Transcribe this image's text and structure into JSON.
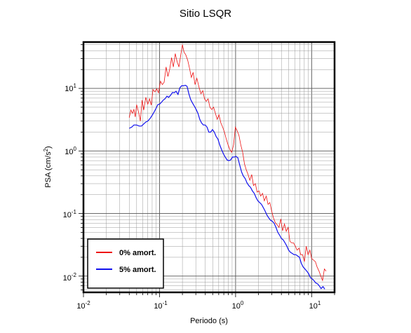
{
  "chart_data": {
    "type": "line",
    "title": "Sitio LSQR",
    "xlabel": "Periodo (s)",
    "ylabel_prefix": "PSA (cm/s",
    "ylabel_exp": "2",
    "ylabel_suffix": ")",
    "xscale": "log",
    "yscale": "log",
    "xlim": [
      0.01,
      20
    ],
    "ylim": [
      0.0055,
      55
    ],
    "grid": true,
    "legend_position": "bottom-left",
    "x_ticks": [
      {
        "base": "10",
        "exp": "-2",
        "value": 0.01
      },
      {
        "base": "10",
        "exp": "-1",
        "value": 0.1
      },
      {
        "base": "10",
        "exp": "0",
        "value": 1
      },
      {
        "base": "10",
        "exp": "1",
        "value": 10
      }
    ],
    "y_ticks": [
      {
        "base": "10",
        "exp": "-2",
        "value": 0.01
      },
      {
        "base": "10",
        "exp": "-1",
        "value": 0.1
      },
      {
        "base": "10",
        "exp": "0",
        "value": 1
      },
      {
        "base": "10",
        "exp": "1",
        "value": 10
      }
    ],
    "series": [
      {
        "name": "0% amort.",
        "color": "#ee1111",
        "points": [
          [
            0.04,
            3.4
          ],
          [
            0.042,
            4.5
          ],
          [
            0.044,
            4.0
          ],
          [
            0.046,
            4.6
          ],
          [
            0.048,
            3.5
          ],
          [
            0.05,
            5.5
          ],
          [
            0.053,
            4.2
          ],
          [
            0.056,
            3.0
          ],
          [
            0.059,
            6.5
          ],
          [
            0.062,
            4.5
          ],
          [
            0.066,
            7.2
          ],
          [
            0.07,
            5.6
          ],
          [
            0.074,
            6.8
          ],
          [
            0.078,
            5.4
          ],
          [
            0.082,
            9.6
          ],
          [
            0.087,
            8.8
          ],
          [
            0.092,
            9.8
          ],
          [
            0.097,
            8.5
          ],
          [
            0.103,
            13.0
          ],
          [
            0.109,
            11.5
          ],
          [
            0.115,
            12.5
          ],
          [
            0.122,
            22.0
          ],
          [
            0.129,
            15.5
          ],
          [
            0.136,
            20.0
          ],
          [
            0.144,
            31.0
          ],
          [
            0.152,
            22.0
          ],
          [
            0.161,
            36.0
          ],
          [
            0.17,
            27.0
          ],
          [
            0.18,
            22.0
          ],
          [
            0.19,
            34.0
          ],
          [
            0.2,
            50.0
          ],
          [
            0.21,
            38.0
          ],
          [
            0.222,
            34.0
          ],
          [
            0.235,
            28.0
          ],
          [
            0.248,
            21.0
          ],
          [
            0.262,
            15.0
          ],
          [
            0.277,
            18.0
          ],
          [
            0.293,
            11.5
          ],
          [
            0.31,
            14.5
          ],
          [
            0.33,
            10.5
          ],
          [
            0.35,
            8.2
          ],
          [
            0.37,
            9.2
          ],
          [
            0.39,
            6.8
          ],
          [
            0.412,
            6.2
          ],
          [
            0.435,
            6.8
          ],
          [
            0.46,
            5.0
          ],
          [
            0.486,
            4.6
          ],
          [
            0.513,
            5.0
          ],
          [
            0.542,
            4.0
          ],
          [
            0.573,
            3.2
          ],
          [
            0.605,
            3.8
          ],
          [
            0.64,
            2.8
          ],
          [
            0.676,
            2.4
          ],
          [
            0.714,
            2.0
          ],
          [
            0.754,
            1.55
          ],
          [
            0.797,
            1.25
          ],
          [
            0.842,
            1.05
          ],
          [
            0.89,
            0.95
          ],
          [
            0.94,
            1.25
          ],
          [
            0.993,
            2.4
          ],
          [
            1.05,
            2.1
          ],
          [
            1.11,
            1.75
          ],
          [
            1.17,
            1.25
          ],
          [
            1.24,
            0.95
          ],
          [
            1.31,
            0.62
          ],
          [
            1.38,
            0.5
          ],
          [
            1.46,
            0.42
          ],
          [
            1.54,
            0.34
          ],
          [
            1.63,
            0.42
          ],
          [
            1.72,
            0.28
          ],
          [
            1.82,
            0.3
          ],
          [
            1.92,
            0.22
          ],
          [
            2.03,
            0.23
          ],
          [
            2.14,
            0.19
          ],
          [
            2.26,
            0.21
          ],
          [
            2.39,
            0.16
          ],
          [
            2.53,
            0.19
          ],
          [
            2.67,
            0.14
          ],
          [
            2.82,
            0.15
          ],
          [
            2.98,
            0.11
          ],
          [
            3.15,
            0.085
          ],
          [
            3.33,
            0.071
          ],
          [
            3.52,
            0.066
          ],
          [
            3.72,
            0.06
          ],
          [
            3.93,
            0.082
          ],
          [
            4.15,
            0.053
          ],
          [
            4.39,
            0.068
          ],
          [
            4.63,
            0.052
          ],
          [
            4.9,
            0.06
          ],
          [
            5.17,
            0.036
          ],
          [
            5.46,
            0.034
          ],
          [
            5.77,
            0.034
          ],
          [
            6.1,
            0.03
          ],
          [
            6.44,
            0.026
          ],
          [
            6.81,
            0.028
          ],
          [
            7.19,
            0.022
          ],
          [
            7.6,
            0.022
          ],
          [
            8.03,
            0.017
          ],
          [
            8.48,
            0.03
          ],
          [
            8.96,
            0.022
          ],
          [
            9.47,
            0.026
          ],
          [
            10.0,
            0.019
          ],
          [
            10.6,
            0.018
          ],
          [
            11.2,
            0.017
          ],
          [
            11.8,
            0.014
          ],
          [
            12.5,
            0.012
          ],
          [
            13.2,
            0.01
          ],
          [
            13.9,
            0.0085
          ],
          [
            14.7,
            0.013
          ],
          [
            15.5,
            0.012
          ]
        ]
      },
      {
        "name": "5% amort.",
        "color": "#1111ee",
        "points": [
          [
            0.04,
            2.3
          ],
          [
            0.043,
            2.4
          ],
          [
            0.046,
            2.6
          ],
          [
            0.05,
            2.6
          ],
          [
            0.054,
            2.5
          ],
          [
            0.058,
            2.5
          ],
          [
            0.062,
            2.7
          ],
          [
            0.066,
            2.9
          ],
          [
            0.07,
            3.0
          ],
          [
            0.075,
            3.3
          ],
          [
            0.08,
            3.7
          ],
          [
            0.085,
            4.2
          ],
          [
            0.09,
            4.8
          ],
          [
            0.095,
            5.5
          ],
          [
            0.1,
            5.6
          ],
          [
            0.106,
            6.0
          ],
          [
            0.112,
            6.5
          ],
          [
            0.118,
            6.8
          ],
          [
            0.125,
            7.5
          ],
          [
            0.132,
            7.2
          ],
          [
            0.14,
            7.8
          ],
          [
            0.148,
            8.6
          ],
          [
            0.156,
            8.5
          ],
          [
            0.165,
            9.0
          ],
          [
            0.175,
            8.0
          ],
          [
            0.185,
            10.2
          ],
          [
            0.195,
            11.0
          ],
          [
            0.206,
            11.0
          ],
          [
            0.218,
            11.2
          ],
          [
            0.23,
            10.8
          ],
          [
            0.243,
            8.2
          ],
          [
            0.257,
            6.6
          ],
          [
            0.272,
            5.8
          ],
          [
            0.287,
            5.2
          ],
          [
            0.303,
            4.6
          ],
          [
            0.32,
            4.0
          ],
          [
            0.338,
            3.2
          ],
          [
            0.357,
            2.8
          ],
          [
            0.377,
            2.6
          ],
          [
            0.399,
            2.6
          ],
          [
            0.421,
            2.4
          ],
          [
            0.445,
            2.0
          ],
          [
            0.47,
            2.0
          ],
          [
            0.497,
            2.2
          ],
          [
            0.525,
            2.0
          ],
          [
            0.555,
            1.7
          ],
          [
            0.586,
            1.55
          ],
          [
            0.619,
            1.25
          ],
          [
            0.654,
            1.05
          ],
          [
            0.691,
            0.9
          ],
          [
            0.73,
            0.8
          ],
          [
            0.772,
            0.72
          ],
          [
            0.815,
            0.7
          ],
          [
            0.861,
            0.72
          ],
          [
            0.91,
            0.8
          ],
          [
            0.96,
            0.8
          ],
          [
            1.01,
            0.82
          ],
          [
            1.07,
            0.78
          ],
          [
            1.13,
            0.6
          ],
          [
            1.2,
            0.46
          ],
          [
            1.26,
            0.4
          ],
          [
            1.34,
            0.36
          ],
          [
            1.41,
            0.31
          ],
          [
            1.49,
            0.28
          ],
          [
            1.58,
            0.26
          ],
          [
            1.66,
            0.23
          ],
          [
            1.76,
            0.21
          ],
          [
            1.86,
            0.18
          ],
          [
            1.96,
            0.16
          ],
          [
            2.07,
            0.15
          ],
          [
            2.19,
            0.14
          ],
          [
            2.31,
            0.125
          ],
          [
            2.44,
            0.11
          ],
          [
            2.58,
            0.095
          ],
          [
            2.73,
            0.085
          ],
          [
            2.88,
            0.078
          ],
          [
            3.04,
            0.075
          ],
          [
            3.21,
            0.07
          ],
          [
            3.4,
            0.06
          ],
          [
            3.59,
            0.05
          ],
          [
            3.79,
            0.045
          ],
          [
            4.0,
            0.04
          ],
          [
            4.23,
            0.038
          ],
          [
            4.47,
            0.034
          ],
          [
            4.72,
            0.03
          ],
          [
            4.98,
            0.026
          ],
          [
            5.26,
            0.024
          ],
          [
            5.56,
            0.023
          ],
          [
            5.87,
            0.022
          ],
          [
            6.2,
            0.022
          ],
          [
            6.55,
            0.021
          ],
          [
            6.92,
            0.02
          ],
          [
            7.31,
            0.016
          ],
          [
            7.72,
            0.014
          ],
          [
            8.16,
            0.013
          ],
          [
            8.62,
            0.012
          ],
          [
            9.1,
            0.011
          ],
          [
            9.61,
            0.0095
          ],
          [
            10.2,
            0.009
          ],
          [
            10.7,
            0.0085
          ],
          [
            11.3,
            0.0078
          ],
          [
            12.0,
            0.0075
          ],
          [
            12.6,
            0.007
          ],
          [
            13.3,
            0.0063
          ],
          [
            14.1,
            0.0068
          ],
          [
            14.9,
            0.0062
          ]
        ]
      }
    ]
  }
}
